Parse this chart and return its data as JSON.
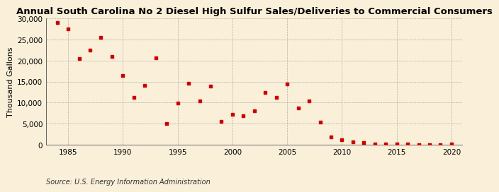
{
  "title": "Annual South Carolina No 2 Diesel High Sulfur Sales/Deliveries to Commercial Consumers",
  "ylabel": "Thousand Gallons",
  "source": "Source: U.S. Energy Information Administration",
  "background_color": "#faefd8",
  "marker_color": "#cc0000",
  "years": [
    1984,
    1985,
    1986,
    1987,
    1988,
    1989,
    1990,
    1991,
    1992,
    1993,
    1994,
    1995,
    1996,
    1997,
    1998,
    1999,
    2000,
    2001,
    2002,
    2003,
    2004,
    2005,
    2006,
    2007,
    2008,
    2009,
    2010,
    2011,
    2012,
    2013,
    2014,
    2015,
    2016,
    2017,
    2018,
    2019,
    2020
  ],
  "values": [
    29000,
    27500,
    20500,
    22500,
    25500,
    21000,
    16500,
    11200,
    14100,
    20700,
    5000,
    9900,
    14600,
    10400,
    14000,
    5600,
    7200,
    6800,
    8100,
    12400,
    11200,
    14500,
    8700,
    10400,
    5300,
    1900,
    1200,
    600,
    500,
    200,
    100,
    100,
    100,
    50,
    50,
    50,
    100
  ],
  "xlim": [
    1983,
    2021
  ],
  "ylim": [
    0,
    30000
  ],
  "yticks": [
    0,
    5000,
    10000,
    15000,
    20000,
    25000,
    30000
  ],
  "xticks": [
    1985,
    1990,
    1995,
    2000,
    2005,
    2010,
    2015,
    2020
  ],
  "title_fontsize": 9.5,
  "label_fontsize": 8,
  "tick_fontsize": 7.5,
  "source_fontsize": 7
}
